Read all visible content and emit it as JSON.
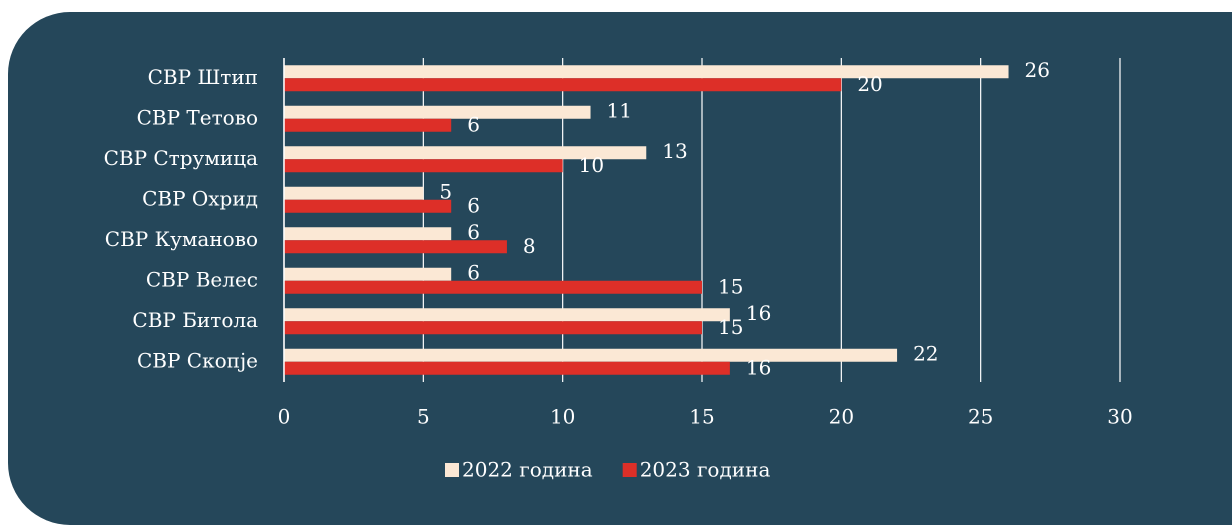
{
  "chart_data": {
    "type": "bar",
    "orientation": "horizontal",
    "categories": [
      "СВР Штип",
      "СВР Тетово",
      "СВР Струмица",
      "СВР Охрид",
      "СВР Куманово",
      "СВР Велес",
      "СВР Битола",
      "СВР Скопје"
    ],
    "series": [
      {
        "name": "2022 година",
        "color": "#fbe8d5",
        "values": [
          26,
          11,
          13,
          5,
          6,
          6,
          16,
          22
        ]
      },
      {
        "name": "2023 година",
        "color": "#dd2f28",
        "values": [
          20,
          6,
          10,
          6,
          8,
          15,
          15,
          16
        ]
      }
    ],
    "xlim": [
      0,
      30
    ],
    "xticks": [
      0,
      5,
      10,
      15,
      20,
      25,
      30
    ],
    "grid": true,
    "legend": "bottom"
  }
}
